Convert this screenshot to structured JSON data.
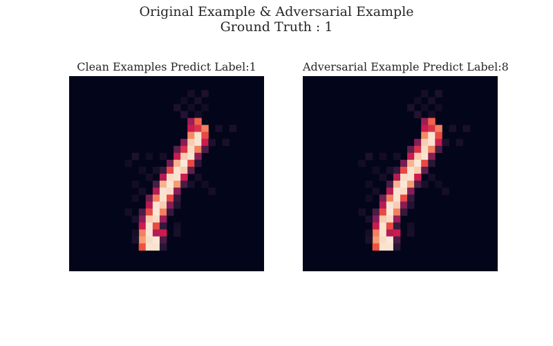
{
  "figure": {
    "title": "Original Example & Adversarial Example",
    "subtitle": "Ground Truth : 1"
  },
  "panels": [
    {
      "id": "clean",
      "title": "Clean Examples Predict Label:1"
    },
    {
      "id": "adversarial",
      "title": "Adversarial Example Predict Label:8"
    }
  ],
  "colormap": {
    "name": "rocket",
    "stops": [
      "#03051a",
      "#2a1738",
      "#5d1f4c",
      "#921d59",
      "#cb1b4f",
      "#ef5541",
      "#f69c73",
      "#f8d8c0",
      "#faebdd"
    ]
  },
  "image": {
    "rows": 28,
    "cols": 28,
    "stroke": [
      {
        "row": 2,
        "cols": [
          [
            17,
            0.06
          ],
          [
            19,
            0.08
          ]
        ]
      },
      {
        "row": 3,
        "cols": [
          [
            16,
            0.05
          ],
          [
            18,
            0.07
          ]
        ]
      },
      {
        "row": 4,
        "cols": [
          [
            15,
            0.08
          ],
          [
            17,
            0.05
          ],
          [
            19,
            0.05
          ]
        ]
      },
      {
        "row": 5,
        "cols": [
          [
            16,
            0.1
          ],
          [
            18,
            0.06
          ]
        ]
      },
      {
        "row": 6,
        "cols": [
          [
            17,
            0.4
          ],
          [
            18,
            0.65
          ]
        ]
      },
      {
        "row": 7,
        "cols": [
          [
            17,
            0.5
          ],
          [
            18,
            0.55
          ],
          [
            19,
            0.7
          ],
          [
            21,
            0.07
          ],
          [
            23,
            0.07
          ]
        ]
      },
      {
        "row": 8,
        "cols": [
          [
            17,
            0.72
          ],
          [
            18,
            0.95
          ],
          [
            19,
            0.6
          ]
        ]
      },
      {
        "row": 9,
        "cols": [
          [
            16,
            0.35
          ],
          [
            17,
            0.85
          ],
          [
            18,
            0.95
          ],
          [
            19,
            0.5
          ],
          [
            20,
            0.08
          ],
          [
            22,
            0.07
          ]
        ]
      },
      {
        "row": 10,
        "cols": [
          [
            15,
            0.25
          ],
          [
            16,
            0.55
          ],
          [
            17,
            0.9
          ],
          [
            18,
            0.7
          ],
          [
            19,
            0.2
          ]
        ]
      },
      {
        "row": 11,
        "cols": [
          [
            15,
            0.5
          ],
          [
            16,
            0.85
          ],
          [
            17,
            0.95
          ],
          [
            18,
            0.35
          ],
          [
            9,
            0.08
          ],
          [
            11,
            0.05
          ],
          [
            13,
            0.06
          ]
        ]
      },
      {
        "row": 12,
        "cols": [
          [
            14,
            0.3
          ],
          [
            15,
            0.8
          ],
          [
            16,
            0.98
          ],
          [
            17,
            0.6
          ],
          [
            18,
            0.12
          ],
          [
            8,
            0.05
          ]
        ]
      },
      {
        "row": 13,
        "cols": [
          [
            13,
            0.15
          ],
          [
            14,
            0.6
          ],
          [
            15,
            0.95
          ],
          [
            16,
            0.85
          ],
          [
            17,
            0.25
          ],
          [
            10,
            0.05
          ],
          [
            12,
            0.07
          ]
        ]
      },
      {
        "row": 14,
        "cols": [
          [
            13,
            0.45
          ],
          [
            14,
            0.9
          ],
          [
            15,
            0.95
          ],
          [
            16,
            0.5
          ],
          [
            11,
            0.06
          ],
          [
            18,
            0.06
          ]
        ]
      },
      {
        "row": 15,
        "cols": [
          [
            12,
            0.2
          ],
          [
            13,
            0.8
          ],
          [
            14,
            0.98
          ],
          [
            15,
            0.75
          ],
          [
            16,
            0.2
          ],
          [
            9,
            0.05
          ],
          [
            17,
            0.07
          ],
          [
            19,
            0.05
          ]
        ]
      },
      {
        "row": 16,
        "cols": [
          [
            12,
            0.45
          ],
          [
            13,
            0.95
          ],
          [
            14,
            0.9
          ],
          [
            15,
            0.35
          ],
          [
            10,
            0.06
          ],
          [
            20,
            0.06
          ]
        ]
      },
      {
        "row": 17,
        "cols": [
          [
            11,
            0.3
          ],
          [
            12,
            0.7
          ],
          [
            13,
            0.95
          ],
          [
            14,
            0.6
          ],
          [
            15,
            0.15
          ],
          [
            9,
            0.05
          ]
        ]
      },
      {
        "row": 18,
        "cols": [
          [
            11,
            0.45
          ],
          [
            12,
            0.95
          ],
          [
            13,
            0.85
          ],
          [
            14,
            0.35
          ],
          [
            15,
            0.1
          ]
        ]
      },
      {
        "row": 19,
        "cols": [
          [
            10,
            0.2
          ],
          [
            11,
            0.6
          ],
          [
            12,
            0.98
          ],
          [
            13,
            0.7
          ],
          [
            14,
            0.15
          ],
          [
            8,
            0.06
          ]
        ]
      },
      {
        "row": 20,
        "cols": [
          [
            10,
            0.35
          ],
          [
            11,
            0.85
          ],
          [
            12,
            0.9
          ],
          [
            13,
            0.4
          ],
          [
            9,
            0.07
          ]
        ]
      },
      {
        "row": 21,
        "cols": [
          [
            10,
            0.5
          ],
          [
            11,
            0.95
          ],
          [
            12,
            0.6
          ],
          [
            13,
            0.15
          ],
          [
            15,
            0.06
          ]
        ]
      },
      {
        "row": 22,
        "cols": [
          [
            10,
            0.7
          ],
          [
            11,
            0.95
          ],
          [
            12,
            0.45
          ],
          [
            13,
            0.5
          ],
          [
            9,
            0.06
          ],
          [
            15,
            0.07
          ]
        ]
      },
      {
        "row": 23,
        "cols": [
          [
            10,
            0.75
          ],
          [
            11,
            0.9
          ],
          [
            12,
            0.98
          ],
          [
            13,
            0.2
          ],
          [
            9,
            0.08
          ]
        ]
      },
      {
        "row": 24,
        "cols": [
          [
            10,
            0.62
          ],
          [
            11,
            0.95
          ],
          [
            12,
            0.95
          ],
          [
            13,
            0.12
          ]
        ]
      }
    ]
  }
}
